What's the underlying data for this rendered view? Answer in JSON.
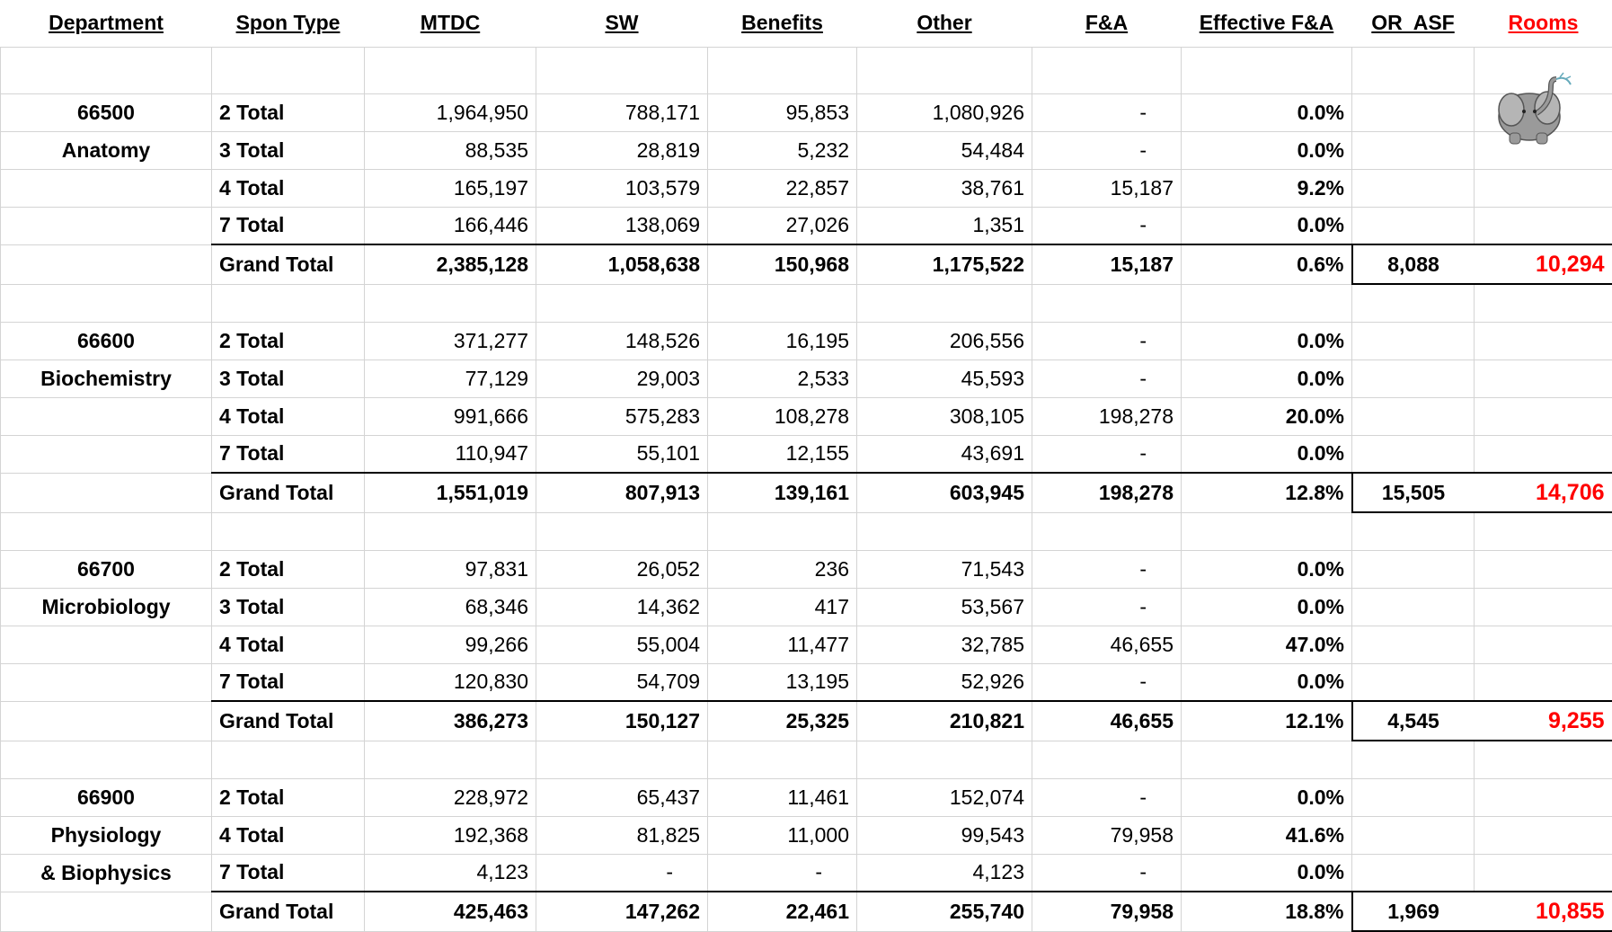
{
  "headers": [
    "Department",
    "Spon Type",
    "MTDC",
    "SW",
    "Benefits",
    "Other",
    "F&A",
    "Effective F&A",
    "OR  ASF",
    "Rooms"
  ],
  "departments": [
    {
      "label": [
        "66500",
        "Anatomy"
      ],
      "rows": [
        {
          "spon": "2 Total",
          "cells": [
            "1,964,950",
            "788,171",
            "95,853",
            "1,080,926",
            "-",
            "0.0%"
          ]
        },
        {
          "spon": "3 Total",
          "cells": [
            "88,535",
            "28,819",
            "5,232",
            "54,484",
            "-",
            "0.0%"
          ]
        },
        {
          "spon": "4 Total",
          "cells": [
            "165,197",
            "103,579",
            "22,857",
            "38,761",
            "15,187",
            "9.2%"
          ]
        },
        {
          "spon": "7 Total",
          "cells": [
            "166,446",
            "138,069",
            "27,026",
            "1,351",
            "-",
            "0.0%"
          ]
        }
      ],
      "total": {
        "spon": "Grand Total",
        "cells": [
          "2,385,128",
          "1,058,638",
          "150,968",
          "1,175,522",
          "15,187",
          "0.6%"
        ],
        "or_asf": "8,088",
        "rooms": "10,294"
      }
    },
    {
      "label": [
        "66600",
        "Biochemistry"
      ],
      "rows": [
        {
          "spon": "2 Total",
          "cells": [
            "371,277",
            "148,526",
            "16,195",
            "206,556",
            "-",
            "0.0%"
          ]
        },
        {
          "spon": "3 Total",
          "cells": [
            "77,129",
            "29,003",
            "2,533",
            "45,593",
            "-",
            "0.0%"
          ]
        },
        {
          "spon": "4 Total",
          "cells": [
            "991,666",
            "575,283",
            "108,278",
            "308,105",
            "198,278",
            "20.0%"
          ]
        },
        {
          "spon": "7 Total",
          "cells": [
            "110,947",
            "55,101",
            "12,155",
            "43,691",
            "-",
            "0.0%"
          ]
        }
      ],
      "total": {
        "spon": "Grand Total",
        "cells": [
          "1,551,019",
          "807,913",
          "139,161",
          "603,945",
          "198,278",
          "12.8%"
        ],
        "or_asf": "15,505",
        "rooms": "14,706"
      }
    },
    {
      "label": [
        "66700",
        "Microbiology"
      ],
      "rows": [
        {
          "spon": "2 Total",
          "cells": [
            "97,831",
            "26,052",
            "236",
            "71,543",
            "-",
            "0.0%"
          ]
        },
        {
          "spon": "3 Total",
          "cells": [
            "68,346",
            "14,362",
            "417",
            "53,567",
            "-",
            "0.0%"
          ]
        },
        {
          "spon": "4 Total",
          "cells": [
            "99,266",
            "55,004",
            "11,477",
            "32,785",
            "46,655",
            "47.0%"
          ]
        },
        {
          "spon": "7 Total",
          "cells": [
            "120,830",
            "54,709",
            "13,195",
            "52,926",
            "-",
            "0.0%"
          ]
        }
      ],
      "total": {
        "spon": "Grand Total",
        "cells": [
          "386,273",
          "150,127",
          "25,325",
          "210,821",
          "46,655",
          "12.1%"
        ],
        "or_asf": "4,545",
        "rooms": "9,255"
      }
    },
    {
      "label": [
        "66900",
        "Physiology",
        "& Biophysics"
      ],
      "rows": [
        {
          "spon": "2 Total",
          "cells": [
            "228,972",
            "65,437",
            "11,461",
            "152,074",
            "-",
            "0.0%"
          ]
        },
        {
          "spon": "4 Total",
          "cells": [
            "192,368",
            "81,825",
            "11,000",
            "99,543",
            "79,958",
            "41.6%"
          ]
        },
        {
          "spon": "7 Total",
          "cells": [
            "4,123",
            "-",
            "-",
            "4,123",
            "-",
            "0.0%"
          ]
        }
      ],
      "total": {
        "spon": "Grand Total",
        "cells": [
          "425,463",
          "147,262",
          "22,461",
          "255,740",
          "79,958",
          "18.8%"
        ],
        "or_asf": "1,969",
        "rooms": "10,855"
      }
    }
  ]
}
